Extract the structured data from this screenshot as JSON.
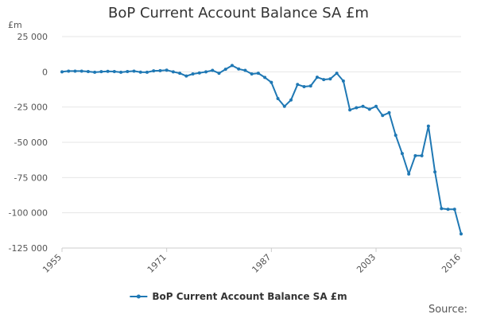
{
  "title": "BoP Current Account Balance SA £m",
  "source_label": "Source:",
  "chart_data": {
    "type": "line",
    "title": "BoP Current Account Balance SA £m",
    "ylabel": "£m",
    "xlabel": "",
    "ylim": [
      -125000,
      25000
    ],
    "xlim": [
      1955,
      2016
    ],
    "y_ticks": [
      25000,
      0,
      -25000,
      -50000,
      -75000,
      -100000,
      -125000
    ],
    "y_tick_labels": [
      "25 000",
      "0",
      "-25 000",
      "-50 000",
      "-75 000",
      "-100 000",
      "-125 000"
    ],
    "x_tick_labels": [
      "1955",
      "1971",
      "1987",
      "2003",
      "2016"
    ],
    "x_ticks": [
      1955,
      1971,
      1987,
      2003,
      2016
    ],
    "grid": "horizontal",
    "legend": "bottom-center",
    "color": "#1f78b4",
    "series": [
      {
        "name": "BoP Current Account Balance SA £m",
        "x": [
          1955,
          1956,
          1957,
          1958,
          1959,
          1960,
          1961,
          1962,
          1963,
          1964,
          1965,
          1966,
          1967,
          1968,
          1969,
          1970,
          1971,
          1972,
          1973,
          1974,
          1975,
          1976,
          1977,
          1978,
          1979,
          1980,
          1981,
          1982,
          1983,
          1984,
          1985,
          1986,
          1987,
          1988,
          1989,
          1990,
          1991,
          1992,
          1993,
          1994,
          1995,
          1996,
          1997,
          1998,
          1999,
          2000,
          2001,
          2002,
          2003,
          2004,
          2005,
          2006,
          2007,
          2008,
          2009,
          2010,
          2011,
          2012,
          2013,
          2014,
          2015,
          2016
        ],
        "values": [
          0,
          500,
          500,
          500,
          200,
          -300,
          100,
          300,
          200,
          -300,
          200,
          500,
          -200,
          -300,
          700,
          800,
          1200,
          0,
          -1000,
          -3000,
          -1500,
          -800,
          0,
          1000,
          -1000,
          1800,
          4500,
          2000,
          1000,
          -1500,
          -1000,
          -4000,
          -7500,
          -19000,
          -24500,
          -20000,
          -9000,
          -10500,
          -10000,
          -3800,
          -5500,
          -5000,
          -1000,
          -6500,
          -27000,
          -25500,
          -24500,
          -26500,
          -24500,
          -31000,
          -29000,
          -45000,
          -58000,
          -72500,
          -59500,
          -59500,
          -38500,
          -71000,
          -97000,
          -97500,
          -97500,
          -115000
        ]
      }
    ]
  }
}
